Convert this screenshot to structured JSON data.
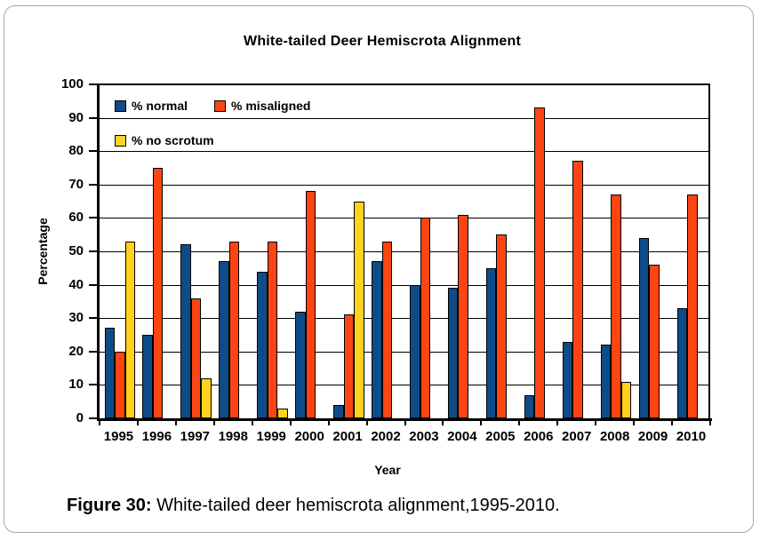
{
  "caption": {
    "label": "Figure 30:",
    "text": " White-tailed deer hemiscrota alignment,1995-2010."
  },
  "chart_data": {
    "type": "bar",
    "title": "White-tailed Deer Hemiscrota Alignment",
    "xlabel": "Year",
    "ylabel": "Percentage",
    "ylim": [
      0,
      100
    ],
    "ytick_step": 10,
    "grid": true,
    "legend_position": "top-left-inside",
    "categories": [
      "1995",
      "1996",
      "1997",
      "1998",
      "1999",
      "2000",
      "2001",
      "2002",
      "2003",
      "2004",
      "2005",
      "2006",
      "2007",
      "2008",
      "2009",
      "2010"
    ],
    "series": [
      {
        "name": "% normal",
        "color": "#0e4c87",
        "values": [
          27,
          25,
          52,
          47,
          44,
          32,
          4,
          47,
          40,
          39,
          45,
          7,
          23,
          22,
          54,
          33
        ]
      },
      {
        "name": "% misaligned",
        "color": "#fc4512",
        "values": [
          20,
          75,
          36,
          53,
          53,
          68,
          31,
          53,
          60,
          61,
          55,
          93,
          77,
          67,
          46,
          67
        ]
      },
      {
        "name": "% no scrotum",
        "color": "#ffd21f",
        "values": [
          53,
          null,
          12,
          null,
          3,
          null,
          65,
          null,
          null,
          null,
          null,
          null,
          null,
          11,
          null,
          null
        ]
      }
    ]
  }
}
